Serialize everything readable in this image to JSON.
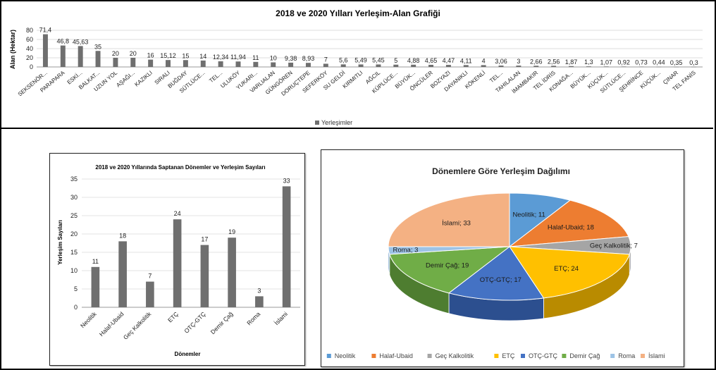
{
  "chart_data": [
    {
      "type": "bar",
      "title": "2018 ve 2020 Yılları Yerleşim-Alan Grafiği",
      "ylabel": "Alan (Hektar)",
      "xlabel": "",
      "ylim": [
        0,
        80
      ],
      "yticks": [
        "0",
        "20",
        "40",
        "60",
        "80"
      ],
      "grid": true,
      "legend": "bottom",
      "categories": [
        "SEKSENÖR...",
        "PARAPARA",
        "ESKİ...",
        "BALKAT...",
        "UZUN YOL",
        "AŞAĞI...",
        "KAZIKLI",
        "SIRALI",
        "BUĞDAY",
        "SÜTLÜCE...",
        "TEL...",
        "ULUKÖY",
        "YUKARI...",
        "VARLIALAN",
        "GÜNGÖREN",
        "DORUÇTEPE",
        "SEFERKÖY",
        "SU GELDİ",
        "KIRMITLI",
        "AĞCIL",
        "KÜPLÜCE...",
        "BÜYÜK...",
        "ÖNCÜLER",
        "BOZYAZI",
        "DAYANIKLI",
        "KÖKENLİ",
        "TEL...",
        "TAHILALAN",
        "İMAMBAKIR",
        "TEL İDRİS",
        "KONAĞA...",
        "BÜYÜK...",
        "KÜÇÜK...",
        "SÜTLÜCE...",
        "ŞEHRİNCE",
        "KÜÇÜK...",
        "ÇINAR",
        "TEL FANİS"
      ],
      "series": [
        {
          "name": "Yerleşimler",
          "color": "#6f6f6f",
          "values": [
            71.4,
            46.8,
            45.63,
            35,
            20,
            20,
            16,
            15.12,
            15,
            14,
            12.34,
            11.94,
            11,
            10,
            9.38,
            8.93,
            7,
            5.6,
            5.49,
            5.45,
            5,
            4.88,
            4.65,
            4.47,
            4.11,
            4,
            3.06,
            3,
            2.66,
            2.56,
            1.87,
            1.3,
            1.07,
            0.92,
            0.73,
            0.44,
            0.35,
            0.3
          ],
          "labels": [
            "71,4",
            "46,8",
            "45,63",
            "35",
            "20",
            "20",
            "16",
            "15,12",
            "15",
            "14",
            "12,34",
            "11,94",
            "11",
            "10",
            "9,38",
            "8,93",
            "7",
            "5,6",
            "5,49",
            "5,45",
            "5",
            "4,88",
            "4,65",
            "4,47",
            "4,11",
            "4",
            "3,06",
            "3",
            "2,66",
            "2,56",
            "1,87",
            "1,3",
            "1,07",
            "0,92",
            "0,73",
            "0,44",
            "0,35",
            "0,3"
          ]
        }
      ]
    },
    {
      "type": "bar",
      "title": "2018 ve 2020 Yıllarında Saptanan Dönemler ve Yerleşim Sayıları",
      "xlabel": "Dönemler",
      "ylabel": "Yerleşim Sayıları",
      "ylim": [
        0,
        35
      ],
      "yticks": [
        "0",
        "5",
        "10",
        "15",
        "20",
        "25",
        "30",
        "35"
      ],
      "grid": true,
      "categories": [
        "Neolitik",
        "Halaf-Ubaid",
        "Geç Kalkolitik",
        "ETÇ",
        "OTÇ-GTÇ",
        "Demir Çağ",
        "Roma",
        "İslami"
      ],
      "values": [
        11,
        18,
        7,
        24,
        17,
        19,
        3,
        33
      ],
      "color": "#6f6f6f"
    },
    {
      "type": "pie",
      "title": "Dönemlere Göre Yerleşim Dağılımı",
      "legend": "bottom",
      "categories": [
        "Neolitik",
        "Halaf-Ubaid",
        "Geç Kalkolitik",
        "ETÇ",
        "OTÇ-GTÇ",
        "Demir Çağ",
        "Roma",
        "İslami"
      ],
      "values": [
        11,
        18,
        7,
        24,
        17,
        19,
        3,
        33
      ],
      "labels": [
        "Neolitik; 11",
        "Halaf-Ubaid; 18",
        "Geç Kalkolitik; 7",
        "ETÇ; 24",
        "OTÇ-GTÇ; 17",
        "Demir Çağ; 19",
        "Roma; 3",
        "İslami; 33"
      ],
      "colors": [
        "#5b9bd5",
        "#ed7d31",
        "#a5a5a5",
        "#ffc000",
        "#4472c4",
        "#70ad47",
        "#9dc3e6",
        "#f4b183"
      ],
      "depth_colors": [
        "#3e75a8",
        "#b85a1c",
        "#7b7b7b",
        "#b98b00",
        "#2c4f8f",
        "#4e7d30",
        "#6f9cc4",
        "#c98456"
      ]
    }
  ]
}
